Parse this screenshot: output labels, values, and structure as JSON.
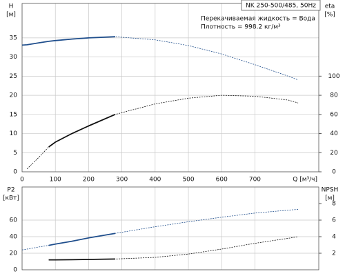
{
  "chart_data": [
    {
      "type": "line",
      "title": "NK 250-500/485, 50Hz",
      "annotations": [
        "Перекачиваемая жидкость = Вода",
        "Плотность = 998.2 кг/м³"
      ],
      "y_label": "H",
      "y_unit": "[м]",
      "y2_label": "eta",
      "y2_unit": "[%]",
      "x_label": "Q [м³/ч]",
      "x": [
        0,
        15,
        50,
        80,
        100,
        150,
        200,
        280,
        400,
        500,
        600,
        700,
        800,
        830
      ],
      "xlim": [
        0,
        892
      ],
      "xticks": [
        0,
        100,
        200,
        300,
        400,
        500,
        600,
        700
      ],
      "show_xtick_labels": true,
      "ylim": [
        0,
        44
      ],
      "yticks": [
        0,
        5,
        10,
        15,
        20,
        25,
        30,
        35
      ],
      "y2lim": [
        0,
        176
      ],
      "y2ticks": [
        0,
        20,
        40,
        60,
        80,
        100
      ],
      "grid": true,
      "series": [
        {
          "name": "H",
          "color": "#1f4e8c",
          "solid_range": [
            0,
            280
          ],
          "values": [
            33.1,
            33.2,
            33.7,
            34.1,
            34.3,
            34.7,
            35.0,
            35.3,
            34.5,
            33.0,
            30.8,
            28.0,
            25.0,
            24.0
          ]
        },
        {
          "name": "eta",
          "color": "#111111",
          "axis": "y2",
          "solid_range": [
            80,
            280
          ],
          "values": [
            null,
            3,
            15,
            26,
            31,
            40,
            48,
            60,
            71,
            77,
            80,
            79,
            75,
            72
          ]
        }
      ]
    },
    {
      "type": "line",
      "y_label": "P2",
      "y_unit": "[кВт]",
      "y2_label": "NPSH",
      "y2_unit": "[м]",
      "x": [
        0,
        15,
        50,
        80,
        100,
        150,
        200,
        280,
        400,
        500,
        600,
        700,
        800,
        830
      ],
      "xlim": [
        0,
        892
      ],
      "xticks": [
        0,
        100,
        200,
        300,
        400,
        500,
        600,
        700
      ],
      "show_xtick_labels": false,
      "ylim": [
        0,
        100
      ],
      "yticks": [
        0,
        20,
        40,
        60
      ],
      "y2lim": [
        0,
        10
      ],
      "y2ticks": [
        2,
        4,
        6,
        8
      ],
      "grid": true,
      "series": [
        {
          "name": "P2",
          "color": "#1f4e8c",
          "solid_range": [
            80,
            280
          ],
          "values": [
            24,
            25,
            27.5,
            29.5,
            31,
            34.5,
            38.5,
            44,
            52,
            58,
            63.5,
            68.5,
            72,
            73
          ]
        },
        {
          "name": "NPSH",
          "color": "#111111",
          "axis": "y2",
          "solid_range": [
            80,
            280
          ],
          "values": [
            null,
            null,
            null,
            1.2,
            1.2,
            1.22,
            1.25,
            1.3,
            1.5,
            1.9,
            2.5,
            3.2,
            3.8,
            4.0
          ]
        }
      ]
    }
  ]
}
